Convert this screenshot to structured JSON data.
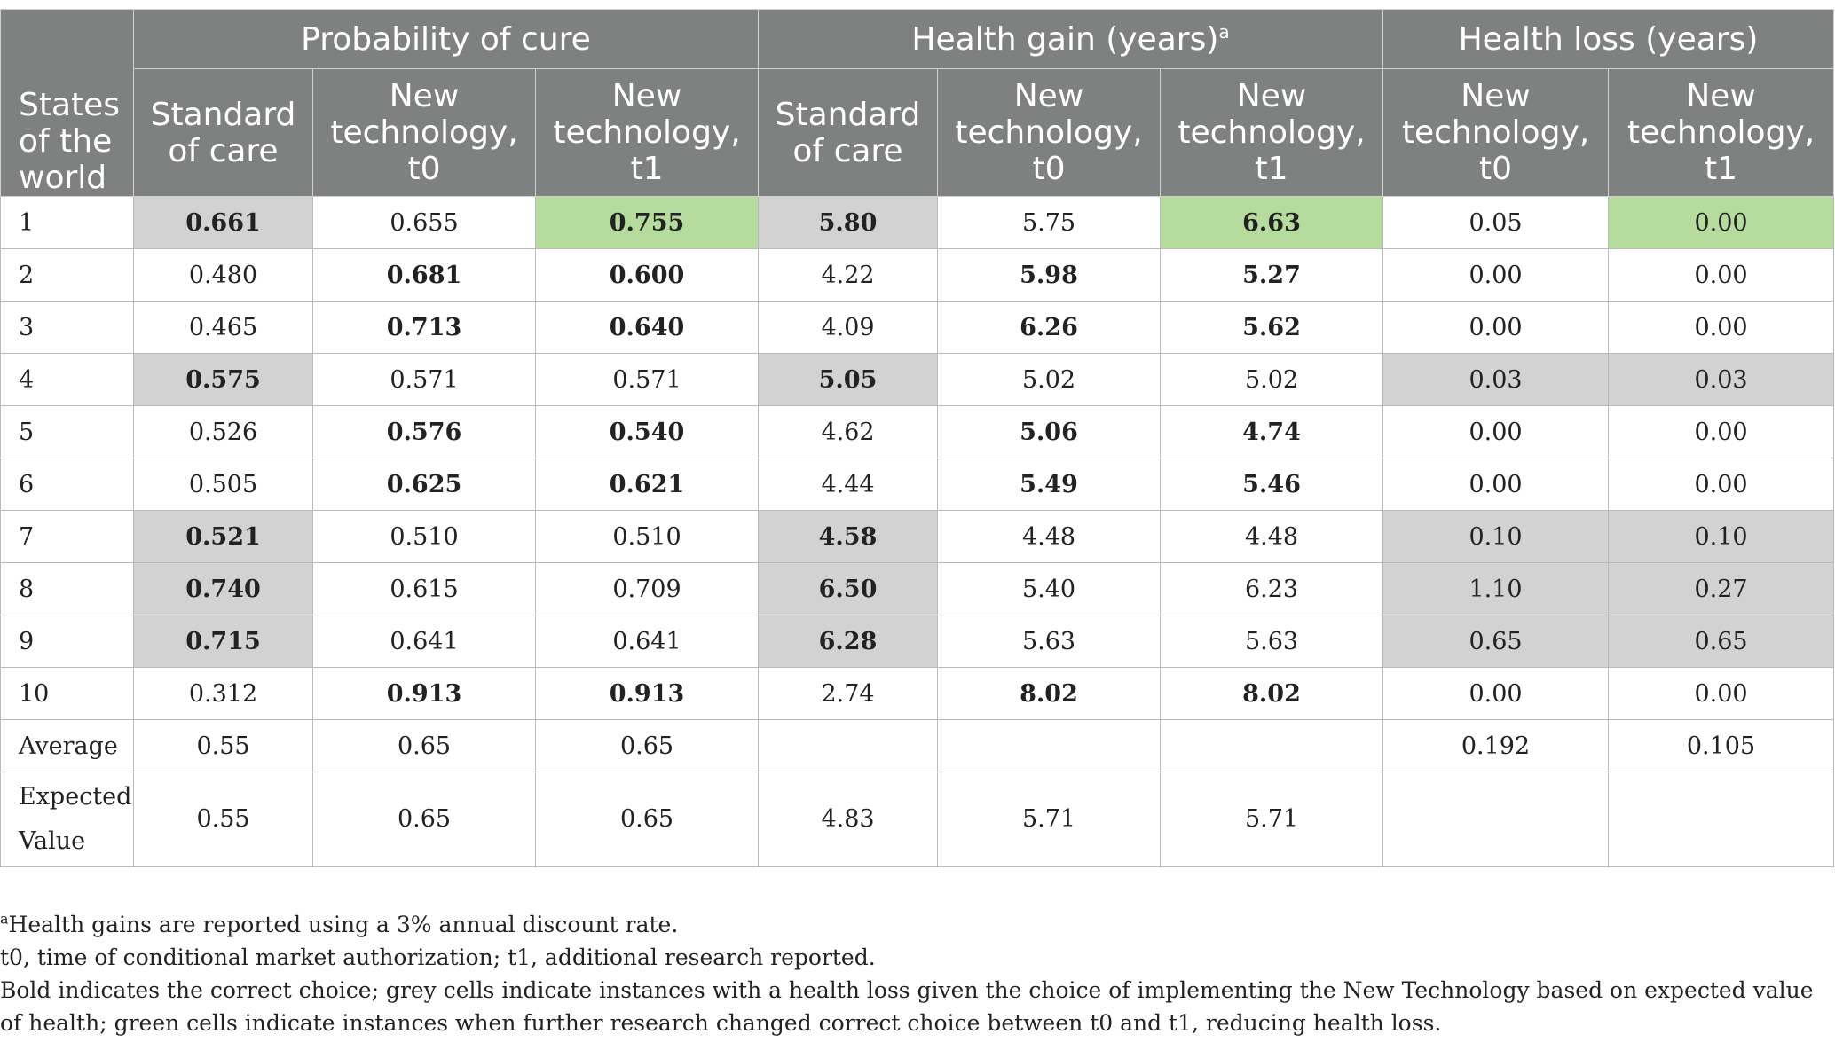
{
  "table": {
    "stub_header": "States of the world",
    "groups": [
      {
        "label": "Probability of cure",
        "marker": ""
      },
      {
        "label": "Health gain (years)",
        "marker": "a"
      },
      {
        "label": "Health loss (years)",
        "marker": ""
      }
    ],
    "subheaders": {
      "standard_of_care": "Standard of care",
      "new_tech_t0": "New technology, t0",
      "new_tech_t1": "New technology, t1"
    },
    "rows": [
      {
        "state": "1",
        "p_soc": "0.661",
        "p_t0": "0.655",
        "p_t1": "0.755",
        "g_soc": "5.80",
        "g_t0": "5.75",
        "g_t1": "6.63",
        "l_t0": "0.05",
        "l_t1": "0.00"
      },
      {
        "state": "2",
        "p_soc": "0.480",
        "p_t0": "0.681",
        "p_t1": "0.600",
        "g_soc": "4.22",
        "g_t0": "5.98",
        "g_t1": "5.27",
        "l_t0": "0.00",
        "l_t1": "0.00"
      },
      {
        "state": "3",
        "p_soc": "0.465",
        "p_t0": "0.713",
        "p_t1": "0.640",
        "g_soc": "4.09",
        "g_t0": "6.26",
        "g_t1": "5.62",
        "l_t0": "0.00",
        "l_t1": "0.00"
      },
      {
        "state": "4",
        "p_soc": "0.575",
        "p_t0": "0.571",
        "p_t1": "0.571",
        "g_soc": "5.05",
        "g_t0": "5.02",
        "g_t1": "5.02",
        "l_t0": "0.03",
        "l_t1": "0.03"
      },
      {
        "state": "5",
        "p_soc": "0.526",
        "p_t0": "0.576",
        "p_t1": "0.540",
        "g_soc": "4.62",
        "g_t0": "5.06",
        "g_t1": "4.74",
        "l_t0": "0.00",
        "l_t1": "0.00"
      },
      {
        "state": "6",
        "p_soc": "0.505",
        "p_t0": "0.625",
        "p_t1": "0.621",
        "g_soc": "4.44",
        "g_t0": "5.49",
        "g_t1": "5.46",
        "l_t0": "0.00",
        "l_t1": "0.00"
      },
      {
        "state": "7",
        "p_soc": "0.521",
        "p_t0": "0.510",
        "p_t1": "0.510",
        "g_soc": "4.58",
        "g_t0": "4.48",
        "g_t1": "4.48",
        "l_t0": "0.10",
        "l_t1": "0.10"
      },
      {
        "state": "8",
        "p_soc": "0.740",
        "p_t0": "0.615",
        "p_t1": "0.709",
        "g_soc": "6.50",
        "g_t0": "5.40",
        "g_t1": "6.23",
        "l_t0": "1.10",
        "l_t1": "0.27"
      },
      {
        "state": "9",
        "p_soc": "0.715",
        "p_t0": "0.641",
        "p_t1": "0.641",
        "g_soc": "6.28",
        "g_t0": "5.63",
        "g_t1": "5.63",
        "l_t0": "0.65",
        "l_t1": "0.65"
      },
      {
        "state": "10",
        "p_soc": "0.312",
        "p_t0": "0.913",
        "p_t1": "0.913",
        "g_soc": "2.74",
        "g_t0": "8.02",
        "g_t1": "8.02",
        "l_t0": "0.00",
        "l_t1": "0.00"
      }
    ],
    "average": {
      "label": "Average",
      "p_soc": "0.55",
      "p_t0": "0.65",
      "p_t1": "0.65",
      "g_soc": "",
      "g_t0": "",
      "g_t1": "",
      "l_t0": "0.192",
      "l_t1": "0.105"
    },
    "expected": {
      "label": "Expected Value",
      "p_soc": "0.55",
      "p_t0": "0.65",
      "p_t1": "0.65",
      "g_soc": "4.83",
      "g_t0": "5.71",
      "g_t1": "5.71",
      "l_t0": "",
      "l_t1": ""
    }
  },
  "footnotes": {
    "a_marker": "a",
    "a_text": "Health gains are reported using a 3% annual discount rate.",
    "abbrev": "t0, time of conditional market authorization; t1, additional research reported.",
    "legend": "Bold indicates the correct choice; grey cells indicate instances with a health loss given the choice of implementing the New Technology based on expected value of health; green cells indicate instances when further research changed correct choice between t0 and t1, reducing health loss."
  },
  "colors": {
    "header_bg": "#7f8180",
    "grey_cell": "#d2d2d2",
    "green_cell": "#b5dc9d"
  }
}
